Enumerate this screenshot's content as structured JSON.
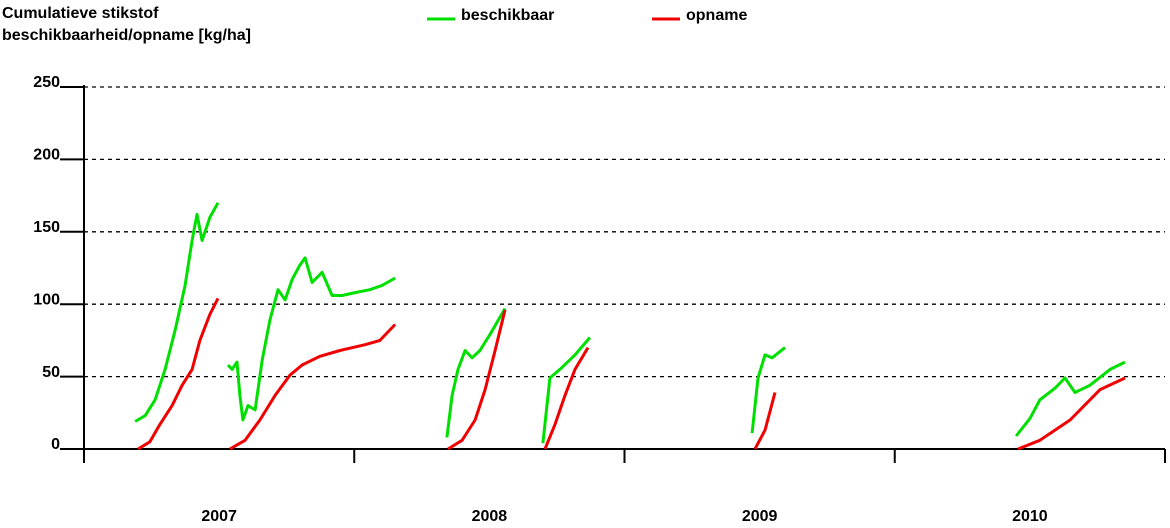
{
  "chart_data": {
    "type": "line",
    "title_lines": [
      "Cumulatieve stikstof",
      "beschikbaarheid/opname [kg/ha]"
    ],
    "categories": [
      "2007",
      "2008",
      "2009",
      "2010"
    ],
    "xlim": [
      2007,
      2011
    ],
    "xticks": [
      2007,
      2008,
      2009,
      2010,
      2011
    ],
    "ylim": [
      0,
      250
    ],
    "yticks": [
      0,
      50,
      100,
      150,
      200,
      250
    ],
    "grid": true,
    "series": [
      {
        "name": "beschikbaar",
        "color": "#00e000",
        "x": [
          2007.189,
          2007.226,
          2007.263,
          2007.3,
          2007.337,
          2007.374,
          2007.4,
          2007.418,
          2007.437,
          2007.466,
          2007.496,
          null,
          2007.533,
          2007.548,
          2007.566,
          2007.577,
          2007.588,
          2007.607,
          2007.633,
          2007.659,
          2007.688,
          2007.718,
          2007.744,
          2007.77,
          2007.799,
          2007.818,
          2007.844,
          2007.881,
          2007.918,
          2007.955,
          2008.003,
          2008.058,
          2008.103,
          2008.151,
          null,
          2008.343,
          2008.362,
          2008.384,
          2008.41,
          2008.436,
          2008.465,
          2008.502,
          2008.558,
          null,
          2008.698,
          2008.724,
          2008.761,
          2008.817,
          2008.872,
          null,
          2009.472,
          2009.494,
          2009.52,
          2009.546,
          2009.594,
          null,
          2010.449,
          2010.5,
          2010.537,
          2010.593,
          2010.63,
          2010.667,
          2010.722,
          2010.797,
          2010.852
        ],
        "values": [
          19,
          23,
          34,
          55,
          82,
          113,
          144,
          162,
          144,
          160,
          170,
          null,
          58,
          55,
          60,
          37,
          20,
          30,
          27,
          61,
          89,
          110,
          103,
          117,
          127,
          132,
          115,
          122,
          106,
          106,
          108,
          110,
          113,
          118,
          null,
          8,
          37,
          55,
          68,
          63,
          68,
          79,
          97,
          null,
          4,
          49,
          55,
          65,
          77,
          null,
          11,
          49,
          65,
          63,
          70,
          null,
          9,
          21,
          34,
          42,
          49,
          39,
          44,
          55,
          60
        ]
      },
      {
        "name": "opname",
        "color": "#f00000",
        "x": [
          2007.2,
          2007.244,
          2007.281,
          2007.326,
          2007.363,
          2007.4,
          2007.429,
          2007.466,
          2007.496,
          null,
          2007.54,
          2007.596,
          2007.651,
          2007.707,
          2007.762,
          2007.807,
          2007.873,
          2007.947,
          2008.04,
          2008.095,
          2008.151,
          null,
          2008.347,
          2008.399,
          2008.447,
          2008.484,
          2008.521,
          2008.558,
          null,
          2008.706,
          2008.743,
          2008.78,
          2008.817,
          2008.865,
          null,
          2009.483,
          2009.52,
          2009.557,
          null,
          2010.456,
          2010.537,
          2010.649,
          2010.76,
          2010.852
        ],
        "values": [
          0,
          5,
          17,
          30,
          44,
          55,
          75,
          93,
          104,
          null,
          0,
          6,
          20,
          37,
          51,
          58,
          64,
          68,
          72,
          75,
          86,
          null,
          0,
          6,
          20,
          41,
          68,
          96,
          null,
          0,
          17,
          37,
          55,
          70,
          null,
          0,
          13,
          39,
          null,
          0,
          6,
          20,
          41,
          49
        ]
      }
    ]
  }
}
